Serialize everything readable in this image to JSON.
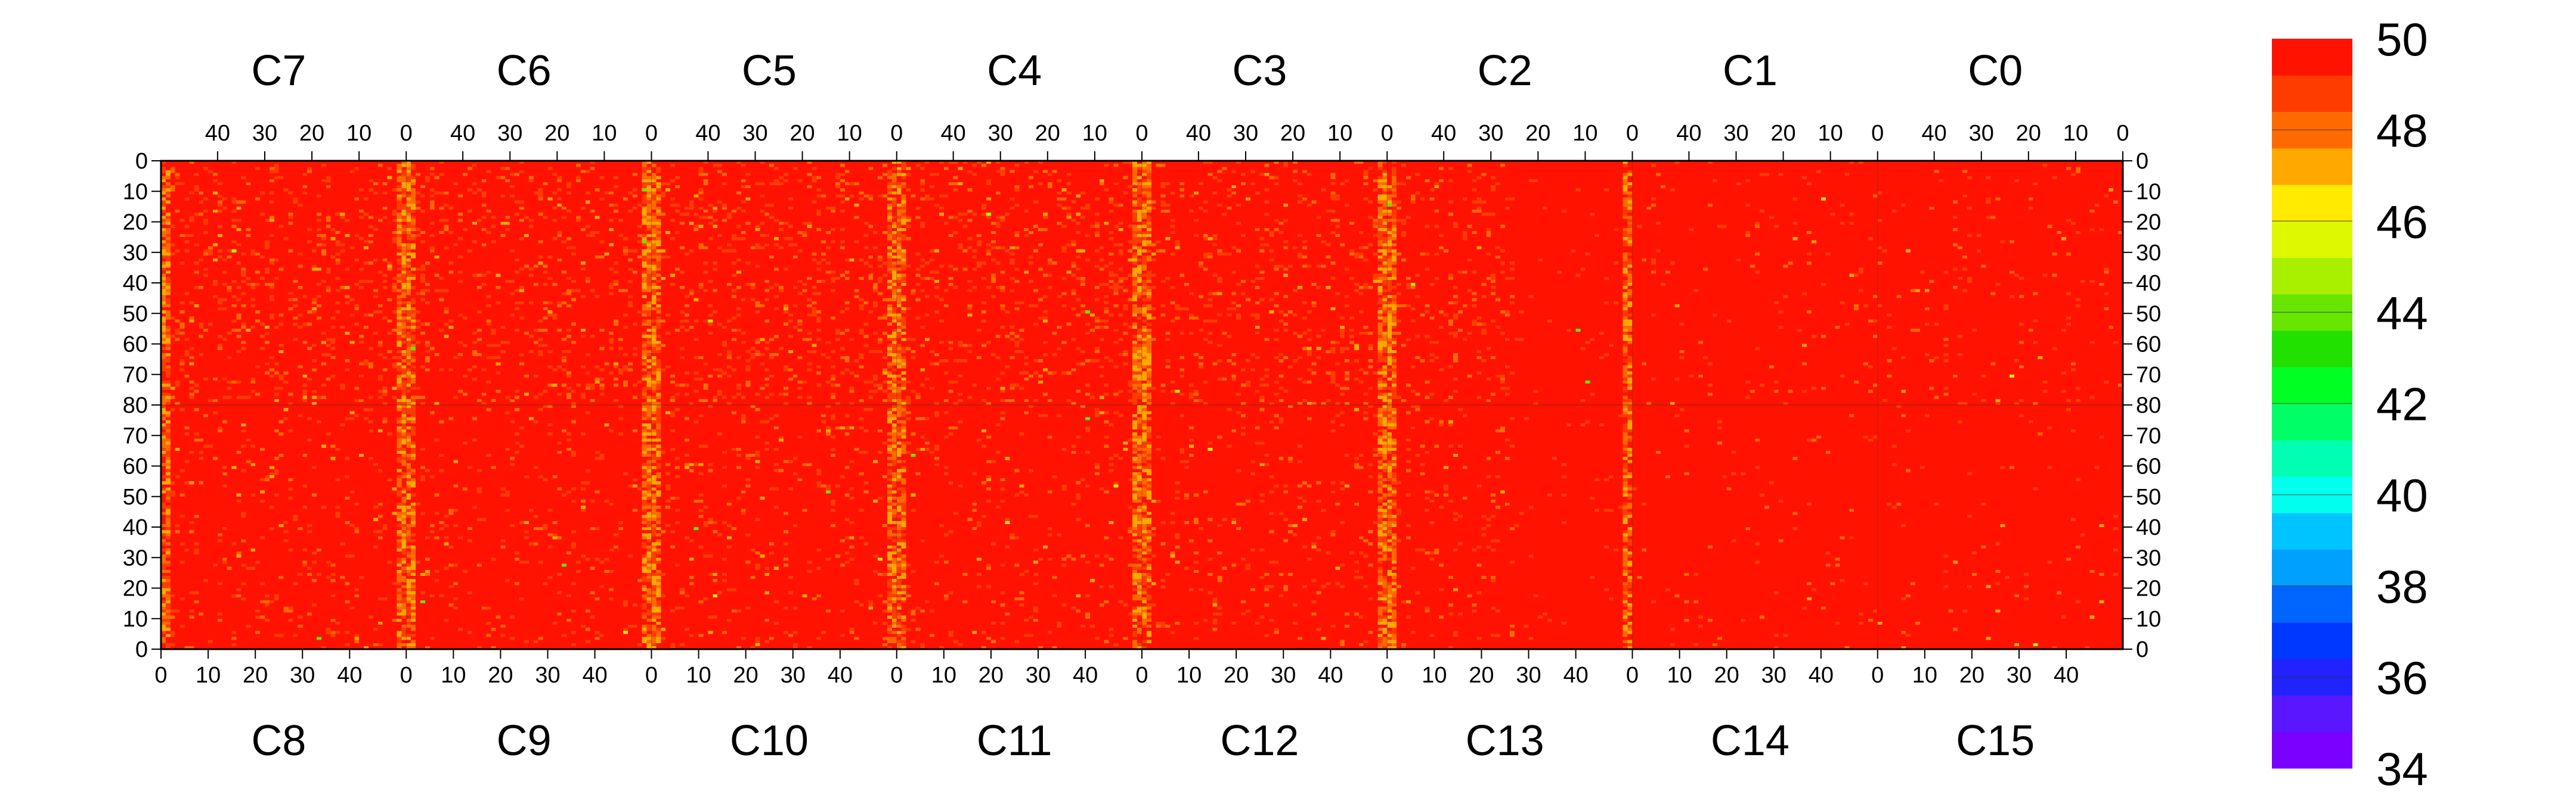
{
  "chart_data": {
    "type": "heatmap",
    "title": "",
    "xlabel": "",
    "ylabel": "",
    "top_chips": [
      "C7",
      "C6",
      "C5",
      "C4",
      "C3",
      "C2",
      "C1",
      "C0"
    ],
    "bottom_chips": [
      "C8",
      "C9",
      "C10",
      "C11",
      "C12",
      "C13",
      "C14",
      "C15"
    ],
    "columns_per_chip": 52,
    "rows_per_half": 80,
    "top_x_ticks": [
      40,
      30,
      20,
      10,
      0
    ],
    "bottom_x_ticks": [
      0,
      10,
      20,
      30,
      40
    ],
    "y_ticks_top": [
      0,
      10,
      20,
      30,
      40,
      50,
      60,
      70,
      80
    ],
    "y_ticks_bottom": [
      70,
      60,
      50,
      40,
      30,
      20,
      10,
      0
    ],
    "z_range": [
      34,
      50
    ],
    "colorbar_labels": [
      50,
      48,
      46,
      44,
      42,
      40,
      38,
      36,
      34
    ],
    "colorbar_levels": [
      34,
      35,
      36,
      37,
      38,
      39,
      40,
      41,
      42,
      43,
      44,
      45,
      46,
      47,
      48,
      49,
      50
    ],
    "colorbar_colors": [
      "#7a00ff",
      "#5a16ff",
      "#2222ff",
      "#0038ff",
      "#0066ff",
      "#00a0ff",
      "#00c4ff",
      "#00ffee",
      "#00ffb0",
      "#00ff66",
      "#00ff22",
      "#22e000",
      "#66e600",
      "#a8f000",
      "#ddf800",
      "#ffea00",
      "#ffa800",
      "#ff6a00",
      "#ff3c00",
      "#ff1200"
    ],
    "dominant_value": 50,
    "description_values": "Nearly all pixels are at 50 (red); chip-edge columns fall to 47-49 (orange/yellow); a few isolated low pixels."
  }
}
